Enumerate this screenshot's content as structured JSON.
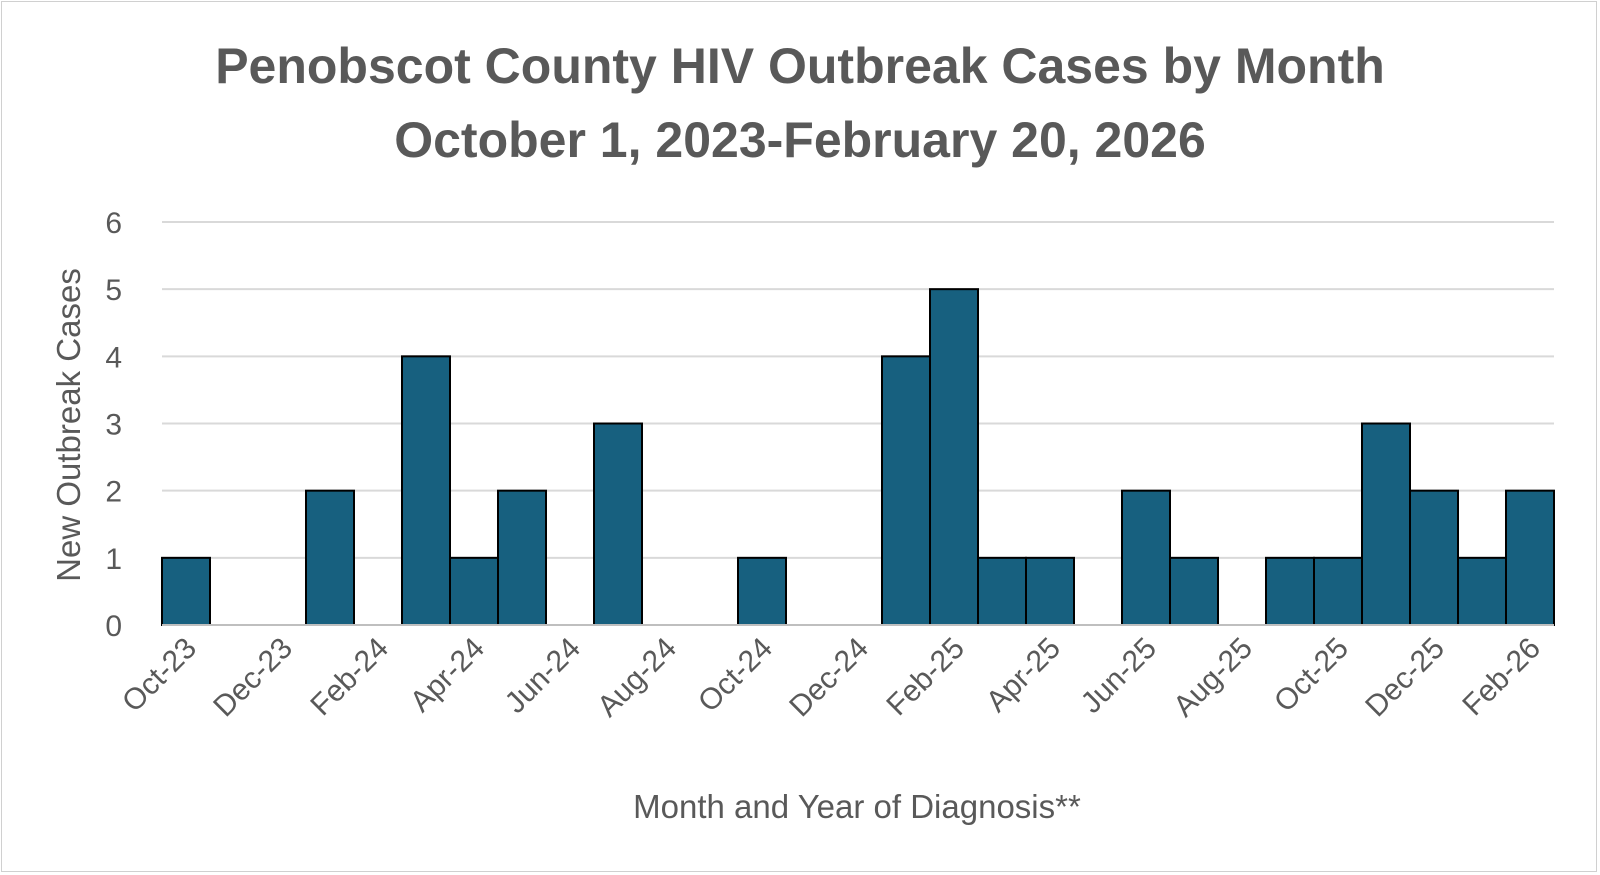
{
  "chart_data": {
    "type": "bar",
    "title_lines": [
      "Penobscot County HIV Outbreak Cases by Month",
      "October 1, 2023-February 20, 2026"
    ],
    "xlabel": "Month and Year of Diagnosis**",
    "ylabel": "New Outbreak Cases",
    "ylim": [
      0,
      6
    ],
    "yticks": [
      0,
      1,
      2,
      3,
      4,
      5,
      6
    ],
    "grid": true,
    "bar_color": "#17607F",
    "categories": [
      "Oct-23",
      "Nov-23",
      "Dec-23",
      "Jan-24",
      "Feb-24",
      "Mar-24",
      "Apr-24",
      "May-24",
      "Jun-24",
      "Jul-24",
      "Aug-24",
      "Sep-24",
      "Oct-24",
      "Nov-24",
      "Dec-24",
      "Jan-25",
      "Feb-25",
      "Mar-25",
      "Apr-25",
      "May-25",
      "Jun-25",
      "Jul-25",
      "Aug-25",
      "Sep-25",
      "Oct-25",
      "Nov-25",
      "Dec-25",
      "Jan-26",
      "Feb-26"
    ],
    "tick_labels": [
      "Oct-23",
      "Dec-23",
      "Feb-24",
      "Apr-24",
      "Jun-24",
      "Aug-24",
      "Oct-24",
      "Dec-24",
      "Feb-25",
      "Apr-25",
      "Jun-25",
      "Aug-25",
      "Oct-25",
      "Dec-25",
      "Feb-26"
    ],
    "values": [
      1,
      0,
      0,
      2,
      0,
      4,
      1,
      2,
      0,
      3,
      0,
      0,
      1,
      0,
      0,
      4,
      5,
      1,
      1,
      0,
      2,
      1,
      0,
      1,
      1,
      3,
      2,
      1,
      2
    ]
  }
}
